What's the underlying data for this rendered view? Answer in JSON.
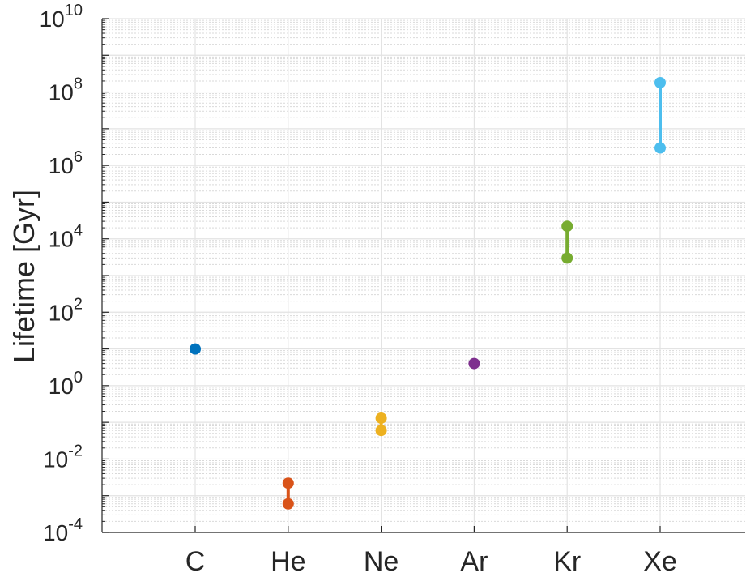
{
  "chart_data": {
    "type": "scatter",
    "title": "",
    "xlabel": "",
    "ylabel": "Lifetime [Gyr]",
    "y_scale": "log",
    "ylim": [
      0.0001,
      10000000000
    ],
    "y_ticks": [
      {
        "base": "10",
        "exp": "-4"
      },
      {
        "base": "10",
        "exp": "-2"
      },
      {
        "base": "10",
        "exp": "0"
      },
      {
        "base": "10",
        "exp": "2"
      },
      {
        "base": "10",
        "exp": "4"
      },
      {
        "base": "10",
        "exp": "6"
      },
      {
        "base": "10",
        "exp": "8"
      },
      {
        "base": "10",
        "exp": "10"
      }
    ],
    "categories": [
      "C",
      "He",
      "Ne",
      "Ar",
      "Kr",
      "Xe"
    ],
    "grid": true,
    "series": [
      {
        "category": "C",
        "color": "#0072bd",
        "values": [
          10
        ]
      },
      {
        "category": "He",
        "color": "#d95319",
        "values": [
          0.0006,
          0.0022
        ]
      },
      {
        "category": "Ne",
        "color": "#edb120",
        "values": [
          0.06,
          0.13
        ]
      },
      {
        "category": "Ar",
        "color": "#7e2f8e",
        "values": [
          4
        ]
      },
      {
        "category": "Kr",
        "color": "#77ac30",
        "values": [
          3000,
          22000
        ]
      },
      {
        "category": "Xe",
        "color": "#4dbeee",
        "values": [
          3000000,
          180000000
        ]
      }
    ]
  }
}
